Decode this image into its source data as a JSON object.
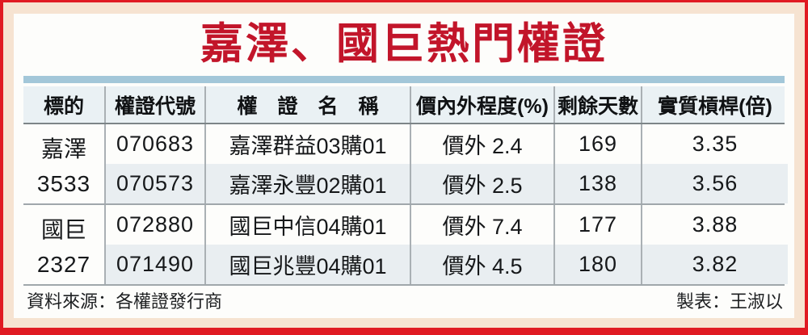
{
  "title": "嘉澤、國巨熱門權證",
  "colors": {
    "frame_red": "#e01a22",
    "title_red": "#c2152a",
    "mat_peach": "#f6e3d1",
    "accent_blue_bar": "#a3c7d9",
    "header_bg": "#eaf1f4",
    "alt_row_bg": "#e9eef1"
  },
  "table": {
    "headers": [
      "標的",
      "權證代號",
      "權　證　名　稱",
      "價內外程度(%)",
      "剩餘天數",
      "實質槓桿(倍)"
    ],
    "groups": [
      {
        "underlying_name": "嘉澤",
        "underlying_code": "3533",
        "rows": [
          {
            "code": "070683",
            "name": "嘉澤群益03購01",
            "moneyness": "價外 2.4",
            "days": "169",
            "leverage": "3.35"
          },
          {
            "code": "070573",
            "name": "嘉澤永豐02購01",
            "moneyness": "價外 2.5",
            "days": "138",
            "leverage": "3.56"
          }
        ]
      },
      {
        "underlying_name": "國巨",
        "underlying_code": "2327",
        "rows": [
          {
            "code": "072880",
            "name": "國巨中信04購01",
            "moneyness": "價外 7.4",
            "days": "177",
            "leverage": "3.88"
          },
          {
            "code": "071490",
            "name": "國巨兆豐04購01",
            "moneyness": "價外 4.5",
            "days": "180",
            "leverage": "3.82"
          }
        ]
      }
    ]
  },
  "footer": {
    "source": "資料來源：各權證發行商",
    "credit": "製表：王淑以"
  }
}
